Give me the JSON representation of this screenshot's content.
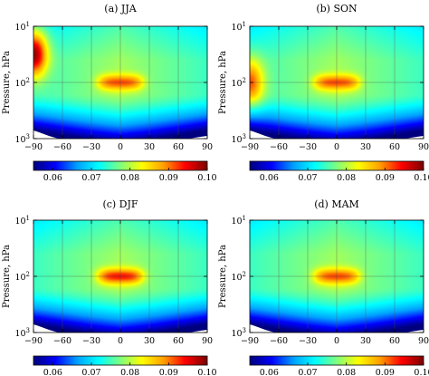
{
  "chart_data": {
    "type": "heatmap",
    "colorbar": {
      "min": 0.055,
      "max": 0.1,
      "ticks": [
        "0.06",
        "0.07",
        "0.08",
        "0.09",
        "0.10"
      ],
      "colormap": [
        "#00007f",
        "#0000ff",
        "#00a0ff",
        "#00ffff",
        "#7fff7f",
        "#ffff00",
        "#ff9f00",
        "#ff0000",
        "#7f0000"
      ]
    },
    "x_ticks": [
      "−90",
      "−60",
      "−30",
      "0",
      "30",
      "60",
      "90"
    ],
    "x_range": [
      -90,
      90
    ],
    "y_range_hPa": [
      1000,
      10
    ],
    "y_scale": "log",
    "grid": true,
    "panels": [
      {
        "title": "(a) JJA",
        "ylabel": "Pressure, hPa",
        "y_ticks": [
          "10",
          "10",
          "10"
        ],
        "y_tick_exps": [
          "1",
          "2",
          "3"
        ],
        "features": {
          "tropical_max": {
            "center_lat": 0,
            "pressure_hPa": 100,
            "value": 0.092
          },
          "polar_max": {
            "center_lat": -90,
            "pressure_hPa": 30,
            "value": 0.1
          },
          "surface_min": {
            "pressure_hPa": 1000,
            "value": 0.055
          }
        }
      },
      {
        "title": "(b) SON",
        "ylabel": "Pressure, hPa",
        "y_ticks": [
          "10",
          "10",
          "10"
        ],
        "y_tick_exps": [
          "1",
          "2",
          "3"
        ],
        "features": {
          "tropical_max": {
            "center_lat": 0,
            "pressure_hPa": 100,
            "value": 0.092
          },
          "polar_max": {
            "center_lat": -90,
            "pressure_hPa": 100,
            "value": 0.092
          },
          "surface_min": {
            "pressure_hPa": 1000,
            "value": 0.055
          }
        }
      },
      {
        "title": "(c) DJF",
        "ylabel": "Pressure, hPa",
        "y_ticks": [
          "10",
          "10",
          "10"
        ],
        "y_tick_exps": [
          "1",
          "2",
          "3"
        ],
        "features": {
          "tropical_max": {
            "center_lat": 0,
            "pressure_hPa": 100,
            "value": 0.094
          },
          "surface_min": {
            "pressure_hPa": 1000,
            "value": 0.055
          }
        }
      },
      {
        "title": "(d) MAM",
        "ylabel": "Pressure, hPa",
        "y_ticks": [
          "10",
          "10",
          "10"
        ],
        "y_tick_exps": [
          "1",
          "2",
          "3"
        ],
        "features": {
          "tropical_max": {
            "center_lat": 0,
            "pressure_hPa": 100,
            "value": 0.092
          },
          "surface_min": {
            "pressure_hPa": 1000,
            "value": 0.055
          }
        }
      }
    ]
  }
}
